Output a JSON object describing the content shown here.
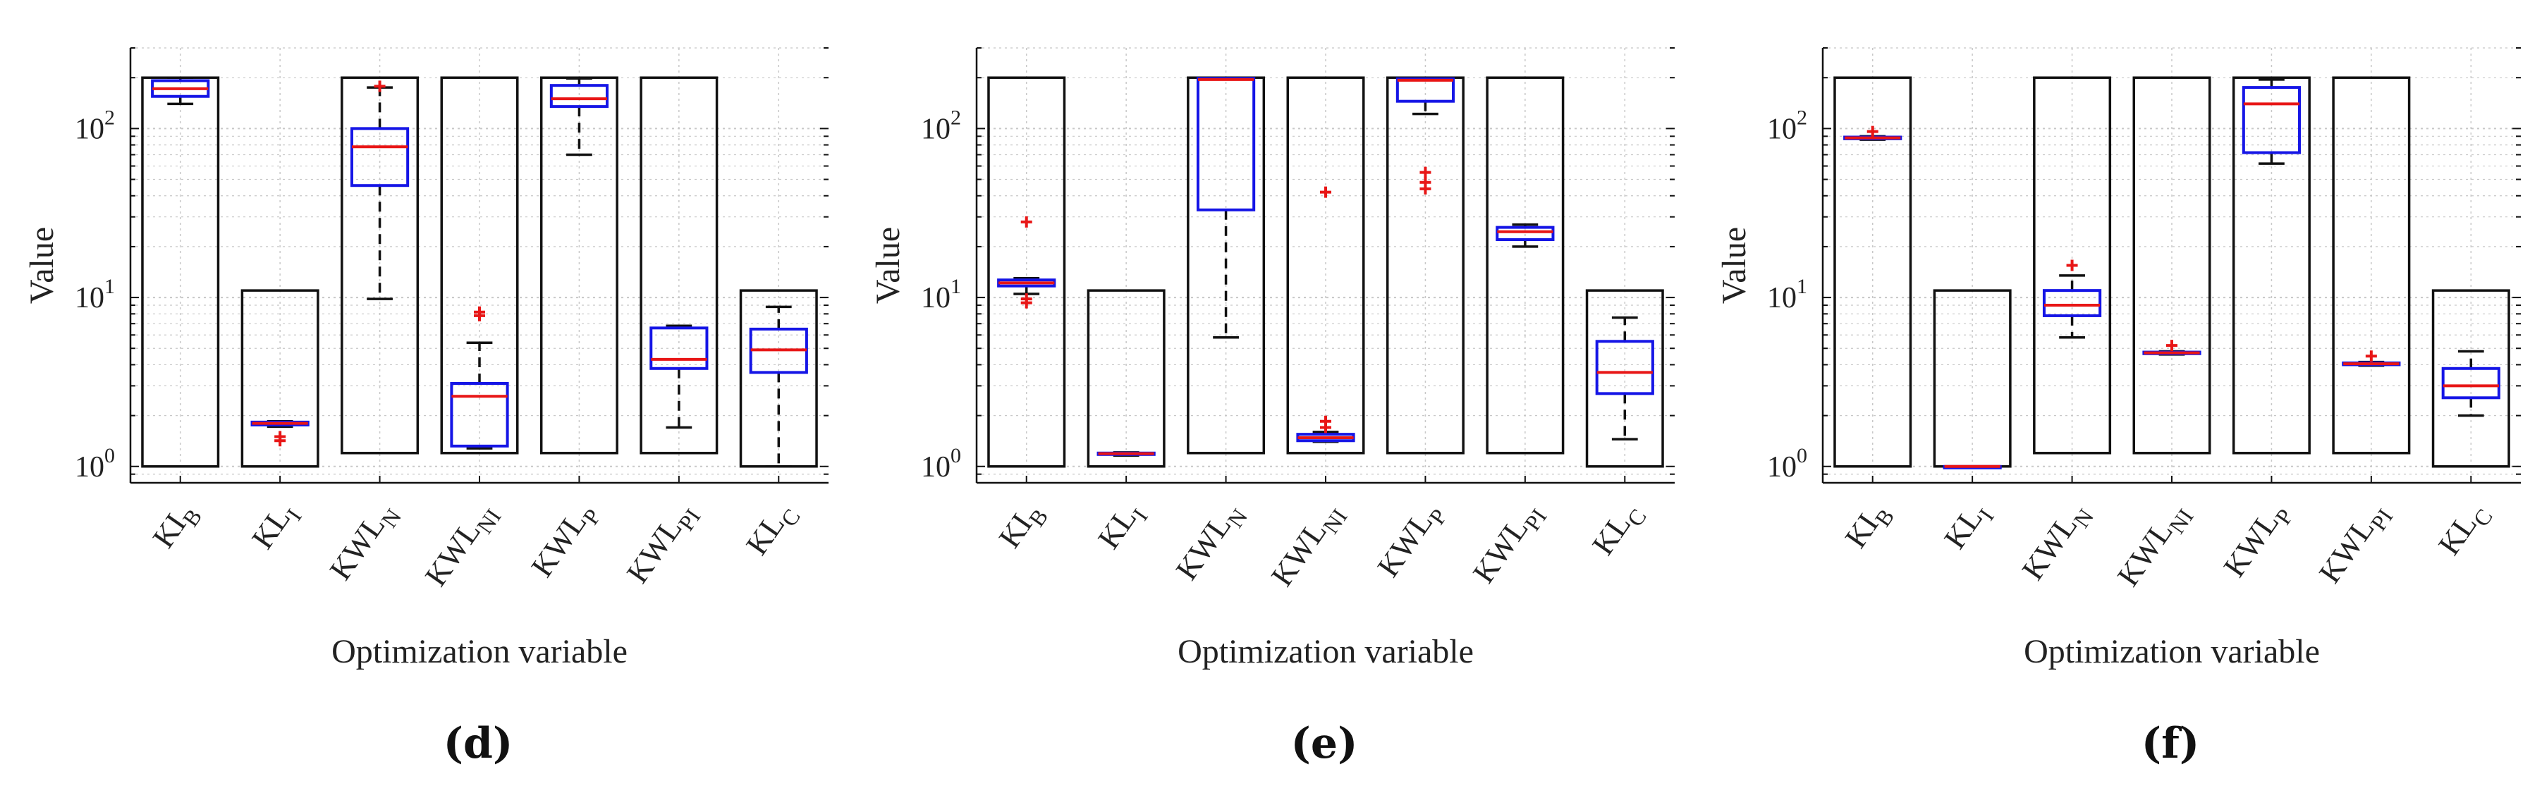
{
  "chart_data": [
    {
      "type": "boxplot",
      "panel_label": "(d)",
      "xlabel": "Optimization variable",
      "ylabel": "Value",
      "yscale": "log",
      "ylim": [
        0.8,
        300
      ],
      "yticks": [
        {
          "base": "10",
          "exp": "0"
        },
        {
          "base": "10",
          "exp": "1"
        },
        {
          "base": "10",
          "exp": "2"
        }
      ],
      "categories": [
        {
          "main": "KI",
          "sub": "B"
        },
        {
          "main": "KL",
          "sub": "I"
        },
        {
          "main": "KWL",
          "sub": "N"
        },
        {
          "main": "KWL",
          "sub": "NI"
        },
        {
          "main": "KWL",
          "sub": "P"
        },
        {
          "main": "KWL",
          "sub": "PI"
        },
        {
          "main": "KL",
          "sub": "C"
        }
      ],
      "bounds": [
        [
          1,
          200
        ],
        [
          1,
          11
        ],
        [
          1.2,
          200
        ],
        [
          1.2,
          200
        ],
        [
          1.2,
          200
        ],
        [
          1.2,
          200
        ],
        [
          1,
          11
        ]
      ],
      "boxes": [
        {
          "wlo": 140,
          "q1": 155,
          "med": 172,
          "q3": 192,
          "whi": 200,
          "outliers": []
        },
        {
          "wlo": 1.72,
          "q1": 1.76,
          "med": 1.8,
          "q3": 1.83,
          "whi": 1.85,
          "outliers": [
            1.5,
            1.42
          ]
        },
        {
          "wlo": 9.8,
          "q1": 46,
          "med": 78,
          "q3": 100,
          "whi": 175,
          "outliers": [
            178
          ]
        },
        {
          "wlo": 1.28,
          "q1": 1.32,
          "med": 2.6,
          "q3": 3.1,
          "whi": 5.4,
          "outliers": [
            7.8,
            8.2
          ]
        },
        {
          "wlo": 70,
          "q1": 135,
          "med": 150,
          "q3": 180,
          "whi": 198,
          "outliers": []
        },
        {
          "wlo": 1.7,
          "q1": 3.8,
          "med": 4.3,
          "q3": 6.6,
          "whi": 6.8,
          "outliers": []
        },
        {
          "wlo": 1.0,
          "q1": 3.6,
          "med": 4.9,
          "q3": 6.5,
          "whi": 8.8,
          "outliers": []
        }
      ]
    },
    {
      "type": "boxplot",
      "panel_label": "(e)",
      "xlabel": "Optimization variable",
      "ylabel": "Value",
      "yscale": "log",
      "ylim": [
        0.8,
        300
      ],
      "yticks": [
        {
          "base": "10",
          "exp": "0"
        },
        {
          "base": "10",
          "exp": "1"
        },
        {
          "base": "10",
          "exp": "2"
        }
      ],
      "categories": [
        {
          "main": "KI",
          "sub": "B"
        },
        {
          "main": "KL",
          "sub": "I"
        },
        {
          "main": "KWL",
          "sub": "N"
        },
        {
          "main": "KWL",
          "sub": "NI"
        },
        {
          "main": "KWL",
          "sub": "P"
        },
        {
          "main": "KWL",
          "sub": "PI"
        },
        {
          "main": "KL",
          "sub": "C"
        }
      ],
      "bounds": [
        [
          1,
          200
        ],
        [
          1,
          11
        ],
        [
          1.2,
          200
        ],
        [
          1.2,
          200
        ],
        [
          1.2,
          200
        ],
        [
          1.2,
          200
        ],
        [
          1,
          11
        ]
      ],
      "boxes": [
        {
          "wlo": 10.5,
          "q1": 11.7,
          "med": 12.2,
          "q3": 12.7,
          "whi": 13.0,
          "outliers": [
            28,
            9.8,
            9.3
          ]
        },
        {
          "wlo": 1.16,
          "q1": 1.18,
          "med": 1.19,
          "q3": 1.2,
          "whi": 1.21,
          "outliers": []
        },
        {
          "wlo": 5.8,
          "q1": 33,
          "med": 195,
          "q3": 198,
          "whi": 200,
          "outliers": []
        },
        {
          "wlo": 1.4,
          "q1": 1.42,
          "med": 1.48,
          "q3": 1.55,
          "whi": 1.6,
          "outliers": [
            42,
            1.85,
            1.7
          ]
        },
        {
          "wlo": 122,
          "q1": 145,
          "med": 193,
          "q3": 197,
          "whi": 200,
          "outliers": [
            55,
            48,
            44
          ]
        },
        {
          "wlo": 20,
          "q1": 22,
          "med": 24.5,
          "q3": 26,
          "whi": 27,
          "outliers": []
        },
        {
          "wlo": 1.45,
          "q1": 2.7,
          "med": 3.6,
          "q3": 5.5,
          "whi": 7.6,
          "outliers": []
        }
      ]
    },
    {
      "type": "boxplot",
      "panel_label": "(f)",
      "xlabel": "Optimization variable",
      "ylabel": "Value",
      "yscale": "log",
      "ylim": [
        0.8,
        300
      ],
      "yticks": [
        {
          "base": "10",
          "exp": "0"
        },
        {
          "base": "10",
          "exp": "1"
        },
        {
          "base": "10",
          "exp": "2"
        }
      ],
      "categories": [
        {
          "main": "KI",
          "sub": "B"
        },
        {
          "main": "KL",
          "sub": "I"
        },
        {
          "main": "KWL",
          "sub": "N"
        },
        {
          "main": "KWL",
          "sub": "NI"
        },
        {
          "main": "KWL",
          "sub": "P"
        },
        {
          "main": "KWL",
          "sub": "PI"
        },
        {
          "main": "KL",
          "sub": "C"
        }
      ],
      "bounds": [
        [
          1,
          200
        ],
        [
          1,
          11
        ],
        [
          1.2,
          200
        ],
        [
          1.2,
          200
        ],
        [
          1.2,
          200
        ],
        [
          1.2,
          200
        ],
        [
          1,
          11
        ]
      ],
      "boxes": [
        {
          "wlo": 86,
          "q1": 87,
          "med": 88,
          "q3": 89,
          "whi": 90,
          "outliers": [
            96
          ]
        },
        {
          "wlo": 1.0,
          "q1": 1.0,
          "med": 1.0,
          "q3": 1.0,
          "whi": 1.0,
          "outliers": []
        },
        {
          "wlo": 5.8,
          "q1": 7.8,
          "med": 9.0,
          "q3": 11,
          "whi": 13.5,
          "outliers": [
            15.5
          ]
        },
        {
          "wlo": 4.6,
          "q1": 4.65,
          "med": 4.7,
          "q3": 4.75,
          "whi": 4.8,
          "outliers": [
            5.2
          ]
        },
        {
          "wlo": 62,
          "q1": 72,
          "med": 140,
          "q3": 175,
          "whi": 195,
          "outliers": []
        },
        {
          "wlo": 3.95,
          "q1": 4.0,
          "med": 4.05,
          "q3": 4.1,
          "whi": 4.15,
          "outliers": [
            4.5
          ]
        },
        {
          "wlo": 2.0,
          "q1": 2.55,
          "med": 3.0,
          "q3": 3.8,
          "whi": 4.8,
          "outliers": []
        }
      ]
    }
  ]
}
